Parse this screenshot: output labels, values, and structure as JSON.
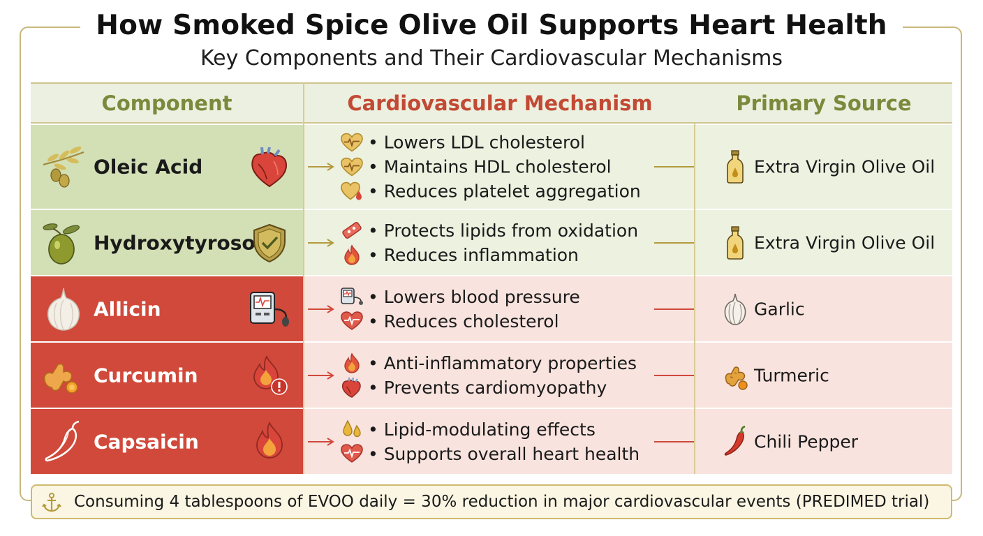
{
  "title": "How Smoked Spice Olive Oil Supports Heart Health",
  "subtitle": "Key Components and Their Cardiovascular Mechanisms",
  "headers": {
    "component": "Component",
    "mechanism": "Cardiovascular Mechanism",
    "source": "Primary Source"
  },
  "colors": {
    "olive_bg": "#d3dfb5",
    "olive_light": "#ecf1e0",
    "red_bg": "#d0493a",
    "red_light": "#f8e3de",
    "olive_text": "#7a8a3c",
    "red_text": "#c24a35",
    "gold": "#c9b77c"
  },
  "rows": [
    {
      "component": "Oleic Acid",
      "theme": "olive",
      "component_icon": "olive-branch-icon",
      "mechanism_icon": "anatomical-heart-icon",
      "mechanisms": [
        {
          "icon": "heart-pulse-icon",
          "text": "• Lowers LDL cholesterol"
        },
        {
          "icon": "heart-pulse-icon",
          "text": "• Maintains HDL cholesterol"
        },
        {
          "icon": "heart-drop-icon",
          "text": "• Reduces platelet aggregation"
        }
      ],
      "source": "Extra Virgin Olive Oil",
      "source_icon": "olive-oil-bottle-icon"
    },
    {
      "component": "Hydroxytyrosol",
      "theme": "olive",
      "component_icon": "olive-icon",
      "mechanism_icon": "shield-check-icon",
      "mechanisms": [
        {
          "icon": "blood-vessel-icon",
          "text": "• Protects lipids from oxidation"
        },
        {
          "icon": "flame-icon",
          "text": "• Reduces inflammation"
        }
      ],
      "source": "Extra Virgin Olive Oil",
      "source_icon": "olive-oil-bottle-icon"
    },
    {
      "component": "Allicin",
      "theme": "red",
      "component_icon": "garlic-icon",
      "mechanism_icon": "blood-pressure-monitor-icon",
      "mechanisms": [
        {
          "icon": "blood-pressure-icon",
          "text": "• Lowers blood pressure"
        },
        {
          "icon": "heart-pulse-icon",
          "text": "• Reduces cholesterol"
        }
      ],
      "source": "Garlic",
      "source_icon": "garlic-icon"
    },
    {
      "component": "Curcumin",
      "theme": "red",
      "component_icon": "turmeric-icon",
      "mechanism_icon": "flame-alert-icon",
      "mechanisms": [
        {
          "icon": "flame-icon",
          "text": "• Anti-inflammatory properties"
        },
        {
          "icon": "anatomical-heart-icon",
          "text": "• Prevents cardiomyopathy"
        }
      ],
      "source": "Turmeric",
      "source_icon": "turmeric-icon"
    },
    {
      "component": "Capsaicin",
      "theme": "red",
      "component_icon": "chili-pepper-outline-icon",
      "mechanism_icon": "flame-icon",
      "mechanisms": [
        {
          "icon": "drops-icon",
          "text": "• Lipid-modulating effects"
        },
        {
          "icon": "heart-pulse-icon",
          "text": "• Supports overall heart health"
        }
      ],
      "source": "Chili Pepper",
      "source_icon": "chili-pepper-icon"
    }
  ],
  "footer": {
    "icon": "anchor-icon",
    "text": "Consuming 4 tablespoons of EVOO daily = 30% reduction in major cardiovascular events (PREDIMED trial)"
  }
}
